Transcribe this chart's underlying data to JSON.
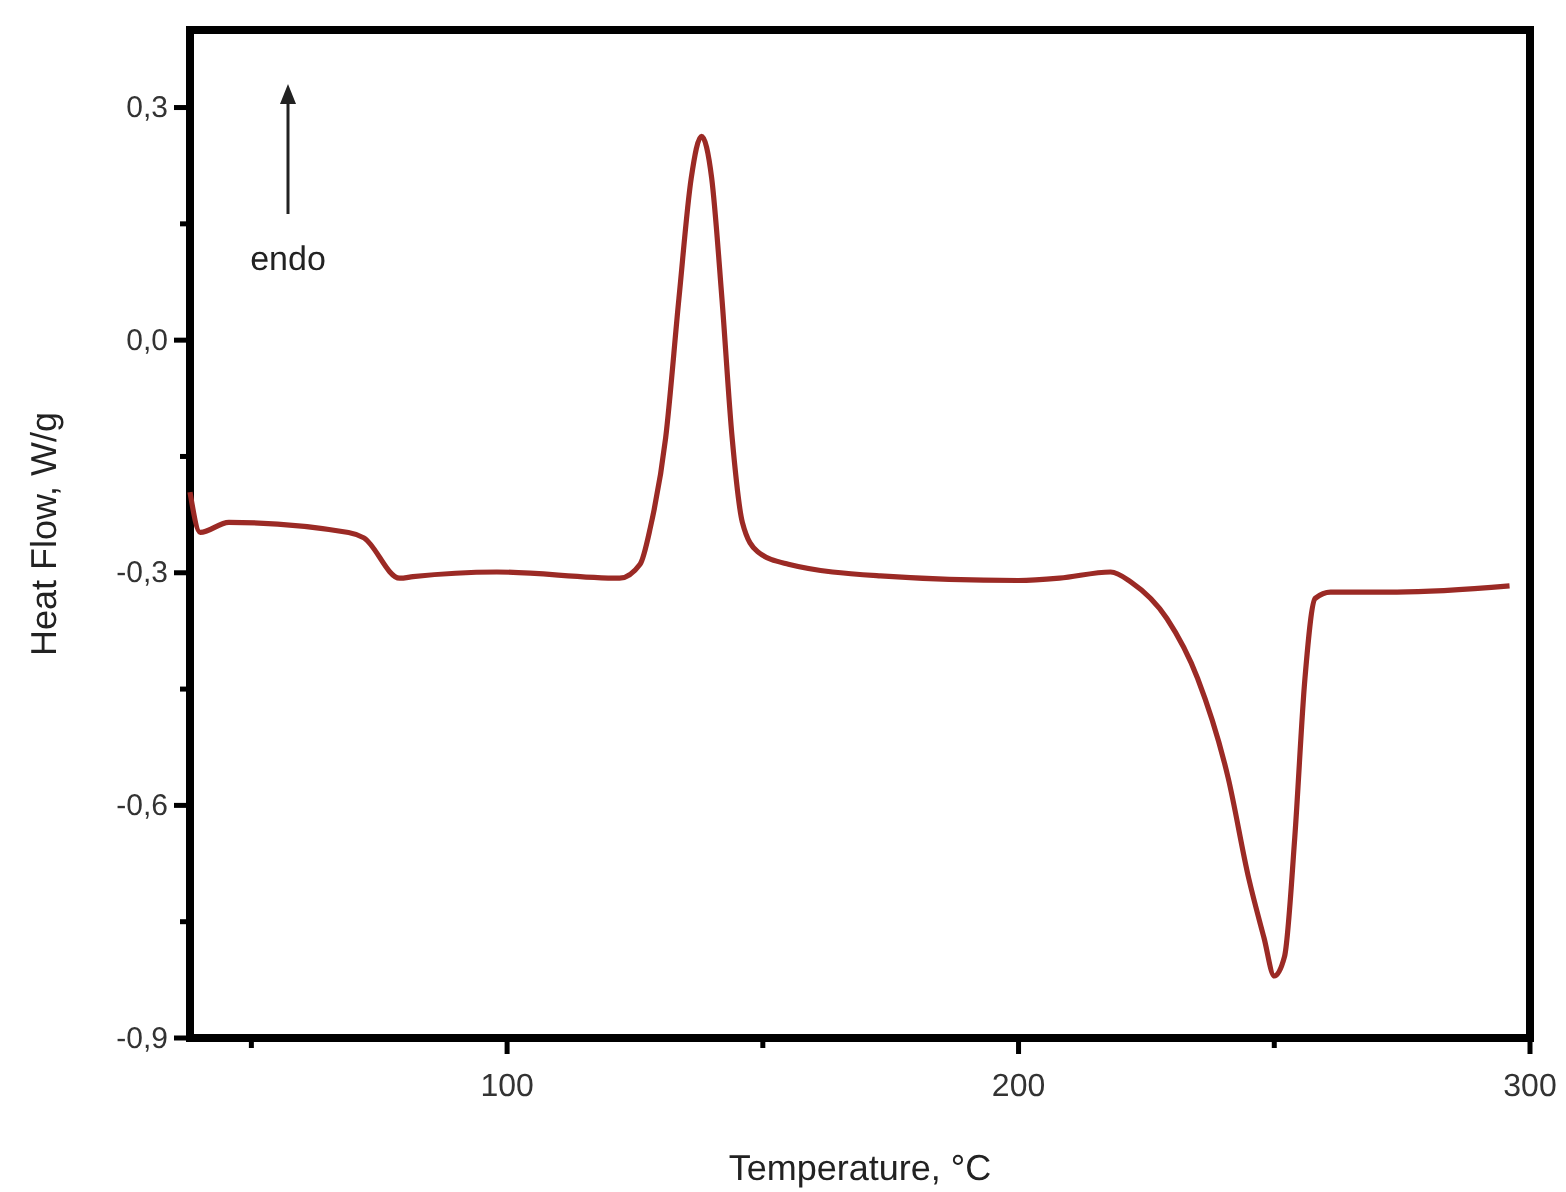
{
  "chart_data": {
    "type": "line",
    "xlabel": "Temperature, °C",
    "ylabel": "Heat Flow, W/g",
    "xlim": [
      38,
      300
    ],
    "ylim": [
      -0.9,
      0.4
    ],
    "xticks": [
      {
        "value": 50,
        "label": null
      },
      100,
      {
        "value": 150,
        "label": null
      },
      200,
      {
        "value": 250,
        "label": null
      },
      300
    ],
    "yticks": [
      {
        "value": -0.9,
        "label": "-0,9"
      },
      {
        "value": -0.75,
        "label": null
      },
      {
        "value": -0.6,
        "label": "-0,6"
      },
      {
        "value": -0.45,
        "label": null
      },
      {
        "value": -0.3,
        "label": "-0,3"
      },
      {
        "value": -0.15,
        "label": null
      },
      {
        "value": 0,
        "label": "0,0"
      },
      {
        "value": 0.15,
        "label": null
      },
      {
        "value": 0.3,
        "label": "0,3"
      }
    ],
    "grid": false,
    "marker": "none",
    "line_style": "solid",
    "annotations": [
      "endo"
    ],
    "series": [
      {
        "color": "#9b2a25",
        "x": [
          38,
          40,
          45.6,
          69,
          72,
          79,
          81.6,
          98,
          122,
          126,
          128,
          131,
          133.6,
          136,
          138,
          140,
          142,
          144,
          146,
          149,
          155,
          173,
          200,
          208,
          218,
          222,
          229,
          235,
          241,
          245,
          248,
          250,
          252,
          254,
          256,
          258,
          261,
          274,
          296
        ],
        "values": [
          -0.196,
          -0.248,
          -0.235,
          -0.248,
          -0.255,
          -0.307,
          -0.305,
          -0.299,
          -0.307,
          -0.289,
          -0.242,
          -0.126,
          0.054,
          0.209,
          0.263,
          0.209,
          0.054,
          -0.126,
          -0.235,
          -0.273,
          -0.289,
          -0.304,
          -0.31,
          -0.307,
          -0.299,
          -0.312,
          -0.359,
          -0.436,
          -0.565,
          -0.694,
          -0.771,
          -0.82,
          -0.795,
          -0.642,
          -0.436,
          -0.333,
          -0.325,
          -0.325,
          -0.317
        ]
      }
    ]
  }
}
